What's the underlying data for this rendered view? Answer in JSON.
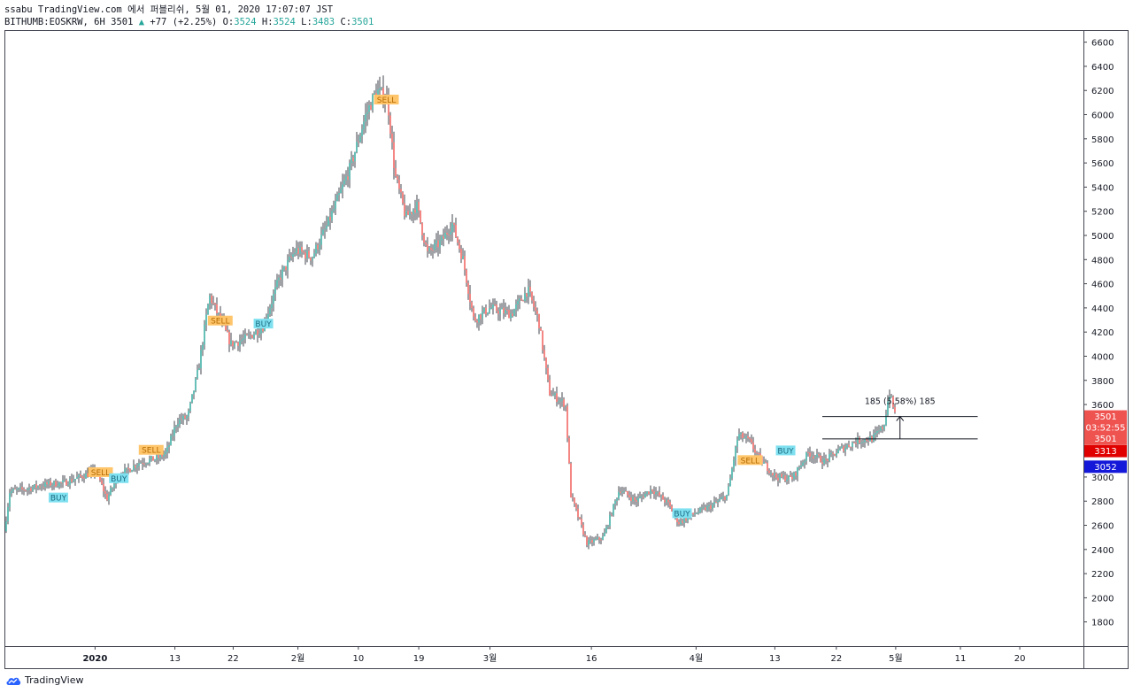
{
  "header": {
    "title": "ssabu TradingView.com 에서 퍼블리쉬, 5월 01, 2020 17:07:07 JST",
    "symbol": "BITHUMB:EOSKRW, 6H",
    "last": "3501",
    "change": "+77 (+2.25%)",
    "o_label": "O:",
    "o": "3524",
    "h_label": "H:",
    "h": "3524",
    "l_label": "L:",
    "l": "3483",
    "c_label": "C:",
    "c": "3501"
  },
  "footer": {
    "brand": "TradingView"
  },
  "colors": {
    "up": "#26a69a",
    "down": "#ef5350",
    "candle": "#131722",
    "buy_bg": "#7fe0f0",
    "sell_bg": "#ffc56b",
    "tag_red": "#ef5350",
    "tag_blue": "#1418d8"
  },
  "chart_data": {
    "type": "candlestick",
    "ylim": [
      1600,
      6700
    ],
    "y_ticks": [
      1800,
      2000,
      2200,
      2400,
      2600,
      2800,
      3000,
      3200,
      3400,
      3600,
      3800,
      4000,
      4200,
      4400,
      4600,
      4800,
      5000,
      5200,
      5400,
      5600,
      5800,
      6000,
      6200,
      6400,
      6600
    ],
    "x_ticks": [
      {
        "label": "2020",
        "pos": 0.084,
        "bold": true
      },
      {
        "label": "13",
        "pos": 0.158
      },
      {
        "label": "22",
        "pos": 0.212
      },
      {
        "label": "2월",
        "pos": 0.272
      },
      {
        "label": "10",
        "pos": 0.328
      },
      {
        "label": "19",
        "pos": 0.384
      },
      {
        "label": "3월",
        "pos": 0.45
      },
      {
        "label": "16",
        "pos": 0.544
      },
      {
        "label": "4월",
        "pos": 0.641
      },
      {
        "label": "13",
        "pos": 0.714
      },
      {
        "label": "22",
        "pos": 0.771
      },
      {
        "label": "5월",
        "pos": 0.826
      },
      {
        "label": "11",
        "pos": 0.886
      },
      {
        "label": "20",
        "pos": 0.941
      }
    ],
    "price_path": [
      [
        0.0,
        2550
      ],
      [
        0.005,
        2880
      ],
      [
        0.02,
        2900
      ],
      [
        0.04,
        2940
      ],
      [
        0.055,
        2950
      ],
      [
        0.07,
        3000
      ],
      [
        0.085,
        3050
      ],
      [
        0.095,
        2820
      ],
      [
        0.105,
        3000
      ],
      [
        0.125,
        3120
      ],
      [
        0.14,
        3150
      ],
      [
        0.15,
        3200
      ],
      [
        0.16,
        3460
      ],
      [
        0.17,
        3500
      ],
      [
        0.18,
        3900
      ],
      [
        0.19,
        4500
      ],
      [
        0.2,
        4300
      ],
      [
        0.21,
        4100
      ],
      [
        0.225,
        4150
      ],
      [
        0.24,
        4250
      ],
      [
        0.255,
        4650
      ],
      [
        0.27,
        4880
      ],
      [
        0.285,
        4820
      ],
      [
        0.3,
        5100
      ],
      [
        0.32,
        5550
      ],
      [
        0.335,
        6000
      ],
      [
        0.345,
        6200
      ],
      [
        0.355,
        6130
      ],
      [
        0.362,
        5500
      ],
      [
        0.372,
        5150
      ],
      [
        0.382,
        5250
      ],
      [
        0.392,
        4850
      ],
      [
        0.405,
        4950
      ],
      [
        0.415,
        5100
      ],
      [
        0.425,
        4800
      ],
      [
        0.435,
        4300
      ],
      [
        0.45,
        4400
      ],
      [
        0.47,
        4350
      ],
      [
        0.485,
        4550
      ],
      [
        0.495,
        4300
      ],
      [
        0.505,
        3700
      ],
      [
        0.52,
        3600
      ],
      [
        0.525,
        2850
      ],
      [
        0.54,
        2450
      ],
      [
        0.555,
        2500
      ],
      [
        0.57,
        2900
      ],
      [
        0.585,
        2800
      ],
      [
        0.6,
        2900
      ],
      [
        0.615,
        2780
      ],
      [
        0.625,
        2620
      ],
      [
        0.64,
        2700
      ],
      [
        0.655,
        2760
      ],
      [
        0.67,
        2850
      ],
      [
        0.68,
        3350
      ],
      [
        0.69,
        3300
      ],
      [
        0.7,
        3150
      ],
      [
        0.715,
        3000
      ],
      [
        0.73,
        2990
      ],
      [
        0.745,
        3200
      ],
      [
        0.76,
        3130
      ],
      [
        0.775,
        3230
      ],
      [
        0.79,
        3300
      ],
      [
        0.805,
        3320
      ],
      [
        0.815,
        3420
      ],
      [
        0.82,
        3700
      ],
      [
        0.826,
        3501
      ]
    ],
    "signals": [
      {
        "label": "BUY",
        "type": "buy",
        "x": 0.05,
        "price": 2830
      },
      {
        "label": "SELL",
        "type": "sell",
        "x": 0.089,
        "price": 3040
      },
      {
        "label": "BUY",
        "type": "buy",
        "x": 0.106,
        "price": 2990
      },
      {
        "label": "SELL",
        "type": "sell",
        "x": 0.136,
        "price": 3225
      },
      {
        "label": "SELL",
        "type": "sell",
        "x": 0.2,
        "price": 4295
      },
      {
        "label": "BUY",
        "type": "buy",
        "x": 0.24,
        "price": 4270
      },
      {
        "label": "SELL",
        "type": "sell",
        "x": 0.354,
        "price": 6125
      },
      {
        "label": "BUY",
        "type": "buy",
        "x": 0.628,
        "price": 2700
      },
      {
        "label": "SELL",
        "type": "sell",
        "x": 0.691,
        "price": 3140
      },
      {
        "label": "BUY",
        "type": "buy",
        "x": 0.724,
        "price": 3220
      }
    ],
    "measure": {
      "label": "185 (5.58%) 185",
      "x1": 0.758,
      "x2": 0.902,
      "top": 3501,
      "bottom": 3316
    },
    "price_tags": [
      {
        "label": "3501",
        "price": 3501,
        "color": "#ef5350",
        "text": "#ffffff"
      },
      {
        "label": "03:52:55",
        "price": 3410,
        "color": "#ef5350",
        "text": "#ffffff"
      },
      {
        "label": "3501",
        "price": 3320,
        "color": "#ef5350",
        "text": "#ffffff"
      },
      {
        "label": "3313",
        "price": 3215,
        "color": "#e00000",
        "text": "#ffffff"
      },
      {
        "label": "3052",
        "price": 3085,
        "color": "#1418d8",
        "text": "#ffffff"
      }
    ]
  }
}
